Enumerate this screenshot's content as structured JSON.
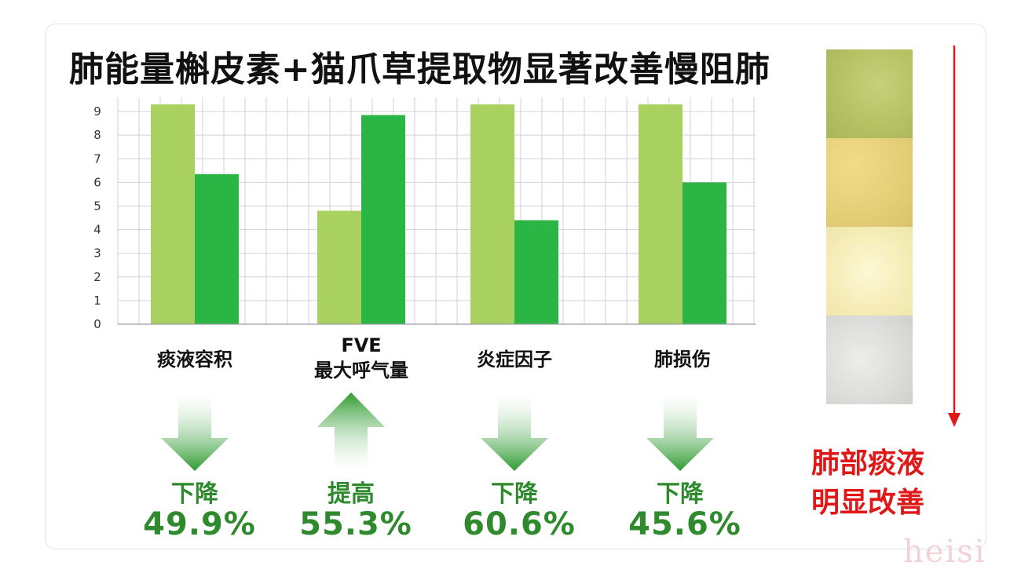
{
  "title": "肺能量槲皮素+猫爪草提取物显著改善慢阻肺",
  "chart_data": {
    "type": "bar",
    "categories": [
      "痰液容积",
      "FVE 最大呼气量",
      "炎症因子",
      "肺损伤"
    ],
    "category_lines": [
      [
        "痰液容积"
      ],
      [
        "FVE",
        "最大呼气量"
      ],
      [
        "炎症因子"
      ],
      [
        "肺损伤"
      ]
    ],
    "series": [
      {
        "values": [
          9.3,
          4.8,
          9.3,
          9.3
        ],
        "color": "#a8d15f"
      },
      {
        "values": [
          6.35,
          8.85,
          4.4,
          6.0
        ],
        "color": "#2bb545"
      }
    ],
    "y_ticks": [
      0,
      1,
      2,
      3,
      4,
      5,
      6,
      7,
      8,
      9
    ],
    "ylim": [
      0,
      9.6
    ],
    "grid": true
  },
  "changes": [
    {
      "direction": "down",
      "word": "下降",
      "value": "49.9%"
    },
    {
      "direction": "up",
      "word": "提高",
      "value": "55.3%"
    },
    {
      "direction": "down",
      "word": "下降",
      "value": "60.6%"
    },
    {
      "direction": "down",
      "word": "下降",
      "value": "45.6%"
    }
  ],
  "side": {
    "line1": "肺部痰液",
    "line2": "明显改善",
    "accent": "#e01818"
  },
  "watermark": "heisi"
}
